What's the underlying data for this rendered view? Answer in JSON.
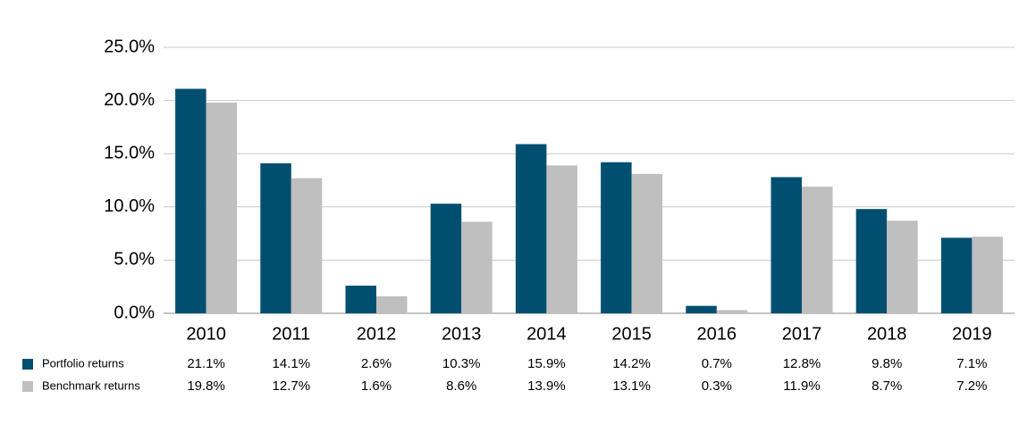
{
  "chart_data": {
    "type": "bar",
    "categories": [
      "2010",
      "2011",
      "2012",
      "2013",
      "2014",
      "2015",
      "2016",
      "2017",
      "2018",
      "2019"
    ],
    "series": [
      {
        "name": "Portfolio returns",
        "color": "#004f71",
        "values": [
          21.1,
          14.1,
          2.6,
          10.3,
          15.9,
          14.2,
          0.7,
          12.8,
          9.8,
          7.1
        ],
        "value_labels": [
          "21.1%",
          "14.1%",
          "2.6%",
          "10.3%",
          "15.9%",
          "14.2%",
          "0.7%",
          "12.8%",
          "9.8%",
          "7.1%"
        ]
      },
      {
        "name": "Benchmark returns",
        "color": "#bfbfbf",
        "values": [
          19.8,
          12.7,
          1.6,
          8.6,
          13.9,
          13.1,
          0.3,
          11.9,
          8.7,
          7.2
        ],
        "value_labels": [
          "19.8%",
          "12.7%",
          "1.6%",
          "8.6%",
          "13.9%",
          "13.1%",
          "0.3%",
          "11.9%",
          "8.7%",
          "7.2%"
        ]
      }
    ],
    "ylim": [
      0,
      25
    ],
    "yticks": [
      {
        "value": 0,
        "label": "0.0%"
      },
      {
        "value": 5,
        "label": "5.0%"
      },
      {
        "value": 10,
        "label": "10.0%"
      },
      {
        "value": 15,
        "label": "15.0%"
      },
      {
        "value": 20,
        "label": "20.0%"
      },
      {
        "value": 25,
        "label": "25.0%"
      }
    ],
    "grid": true
  }
}
